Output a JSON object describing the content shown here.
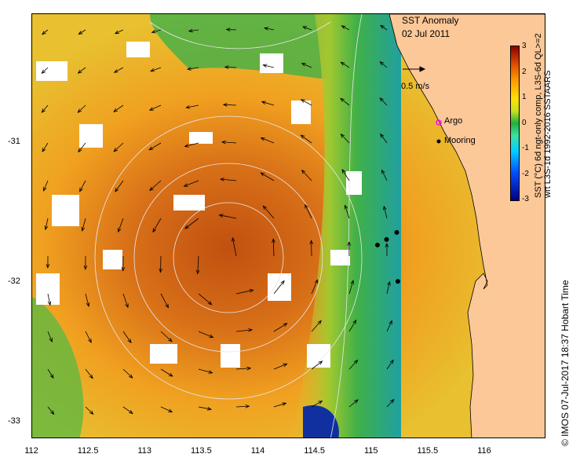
{
  "title": {
    "line1": "SST Anomaly",
    "line2": "02 Jul 2011"
  },
  "scale_arrow_label": "0.5 m/s",
  "legend": [
    {
      "label": "Argo",
      "symbol": "pink-star"
    },
    {
      "label": "Mooring",
      "symbol": "black-dot"
    }
  ],
  "colorbar": {
    "ticks": [
      "3",
      "2",
      "1",
      "0",
      "-1",
      "-2",
      "-3"
    ],
    "label_line1": "SST (°C) 6d ngt-only comp, L3S-6d  QL>=2",
    "label_line2": "wrt L3S-1d 1992-2016 SSTAARS"
  },
  "y_ticks": [
    "-31",
    "-32",
    "-33"
  ],
  "x_ticks": [
    "112",
    "112.5",
    "113",
    "113.5",
    "114",
    "114.5",
    "115",
    "115.5",
    "116"
  ],
  "credit": "© IMOS 07-Jul-2017 18:37 Hobart Time",
  "colors": {
    "land": "#fcc898",
    "ocean_warm": "#e89020",
    "ocean_cool": "#30b050",
    "anomaly_min": "#00007f",
    "anomaly_max": "#8b0000"
  },
  "moorings": [
    {
      "lon": 115.05,
      "lat": -31.73
    },
    {
      "lon": 115.13,
      "lat": -31.69
    },
    {
      "lon": 115.22,
      "lat": -31.64
    },
    {
      "lon": 115.23,
      "lat": -31.99
    }
  ]
}
